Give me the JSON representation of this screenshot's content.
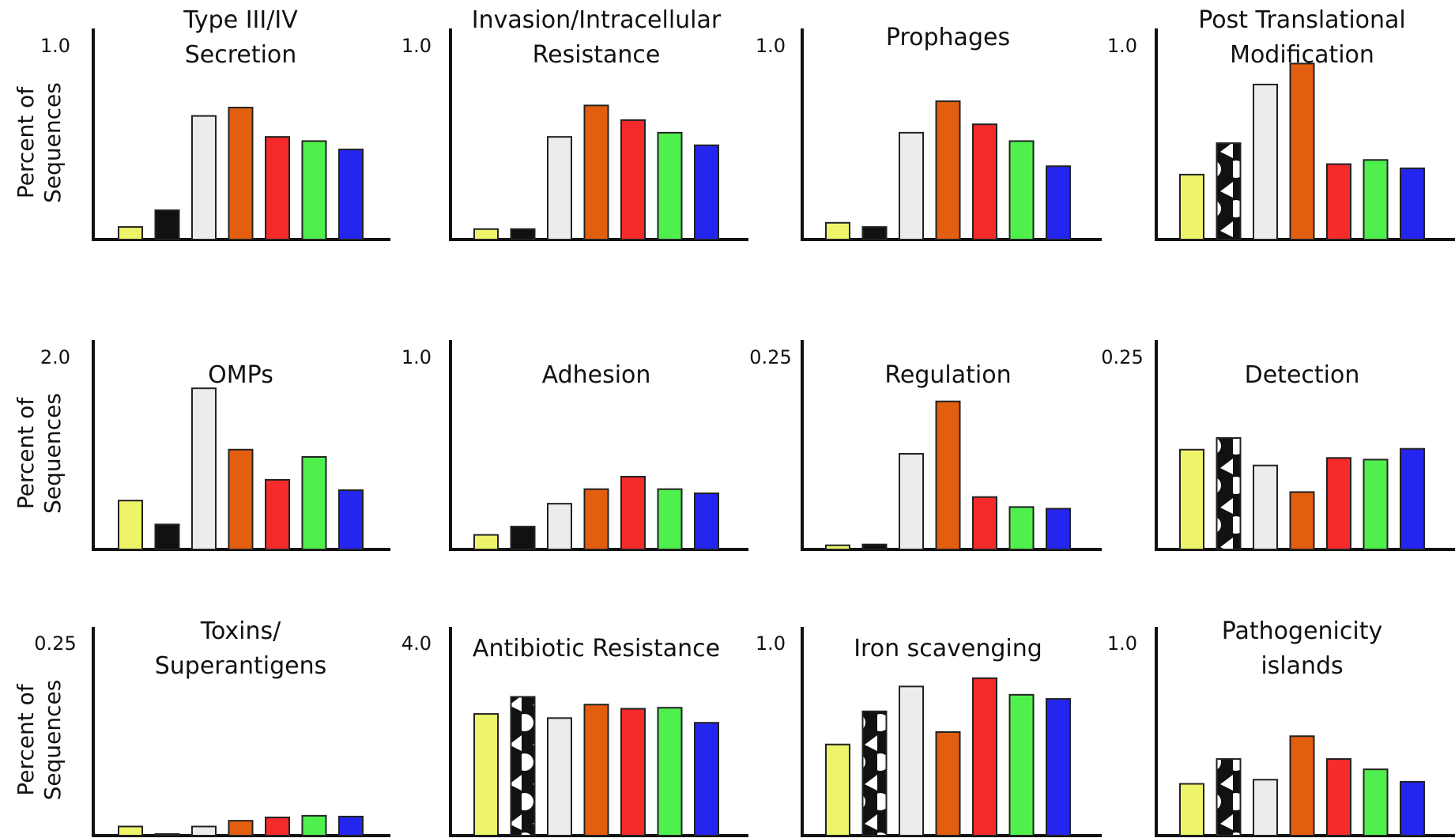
{
  "ylabel_lines": [
    "Percent of",
    "Sequences"
  ],
  "series_colors": [
    "#eef46a",
    "#111111",
    "#ececec",
    "#e35f10",
    "#f52a2a",
    "#4ff04d",
    "#2525f0"
  ],
  "chart_data": [
    {
      "type": "bar",
      "title": [
        "Type III/IV",
        "Secretion"
      ],
      "ymax_label": "1.0",
      "ylim": [
        0,
        1.0
      ],
      "values": [
        0.06,
        0.14,
        0.59,
        0.63,
        0.49,
        0.47,
        0.43
      ]
    },
    {
      "type": "bar",
      "title": [
        "Invasion/Intracellular",
        "Resistance"
      ],
      "ymax_label": "1.0",
      "ylim": [
        0,
        1.0
      ],
      "values": [
        0.05,
        0.05,
        0.49,
        0.64,
        0.57,
        0.51,
        0.45
      ]
    },
    {
      "type": "bar",
      "title": [
        "Prophages"
      ],
      "ymax_label": "1.0",
      "ylim": [
        0,
        1.0
      ],
      "values": [
        0.08,
        0.06,
        0.51,
        0.66,
        0.55,
        0.47,
        0.35
      ]
    },
    {
      "type": "bar",
      "title": [
        "Post Translational",
        "Modification"
      ],
      "ymax_label": "1.0",
      "ylim": [
        0,
        1.0
      ],
      "values": [
        0.31,
        0.46,
        0.74,
        0.84,
        0.36,
        0.38,
        0.34
      ]
    },
    {
      "type": "bar",
      "title": [
        "OMPs"
      ],
      "ymax_label": "2.0",
      "ylim": [
        0,
        2.0
      ],
      "values": [
        0.47,
        0.24,
        1.55,
        0.96,
        0.67,
        0.89,
        0.57
      ]
    },
    {
      "type": "bar",
      "title": [
        "Adhesion"
      ],
      "ymax_label": "1.0",
      "ylim": [
        0,
        1.0
      ],
      "values": [
        0.07,
        0.11,
        0.22,
        0.29,
        0.35,
        0.29,
        0.27
      ]
    },
    {
      "type": "bar",
      "title": [
        "Regulation"
      ],
      "ymax_label": "0.25",
      "ylim": [
        0,
        0.25
      ],
      "values": [
        0.005,
        0.006,
        0.115,
        0.178,
        0.063,
        0.051,
        0.049
      ]
    },
    {
      "type": "bar",
      "title": [
        "Detection"
      ],
      "ymax_label": "0.25",
      "ylim": [
        0,
        0.25
      ],
      "values": [
        0.12,
        0.134,
        0.101,
        0.069,
        0.11,
        0.108,
        0.121
      ]
    },
    {
      "type": "bar",
      "title": [
        "Toxins/",
        "Superantigens"
      ],
      "ymax_label": "0.25",
      "ylim": [
        0,
        0.25
      ],
      "values": [
        0.011,
        0.002,
        0.011,
        0.018,
        0.022,
        0.024,
        0.023
      ]
    },
    {
      "type": "bar",
      "title": [
        "Antibiotic Resistance"
      ],
      "ymax_label": "4.0",
      "ylim": [
        0,
        4.0
      ],
      "values": [
        2.35,
        2.68,
        2.27,
        2.53,
        2.45,
        2.47,
        2.18
      ]
    },
    {
      "type": "bar",
      "title": [
        "Iron scavenging"
      ],
      "ymax_label": "1.0",
      "ylim": [
        0,
        1.0
      ],
      "values": [
        0.44,
        0.6,
        0.72,
        0.5,
        0.76,
        0.68,
        0.66
      ]
    },
    {
      "type": "bar",
      "title": [
        "Pathogenicity",
        "islands"
      ],
      "ymax_label": "1.0",
      "ylim": [
        0,
        1.0
      ],
      "values": [
        0.25,
        0.37,
        0.27,
        0.48,
        0.37,
        0.32,
        0.26
      ]
    }
  ]
}
